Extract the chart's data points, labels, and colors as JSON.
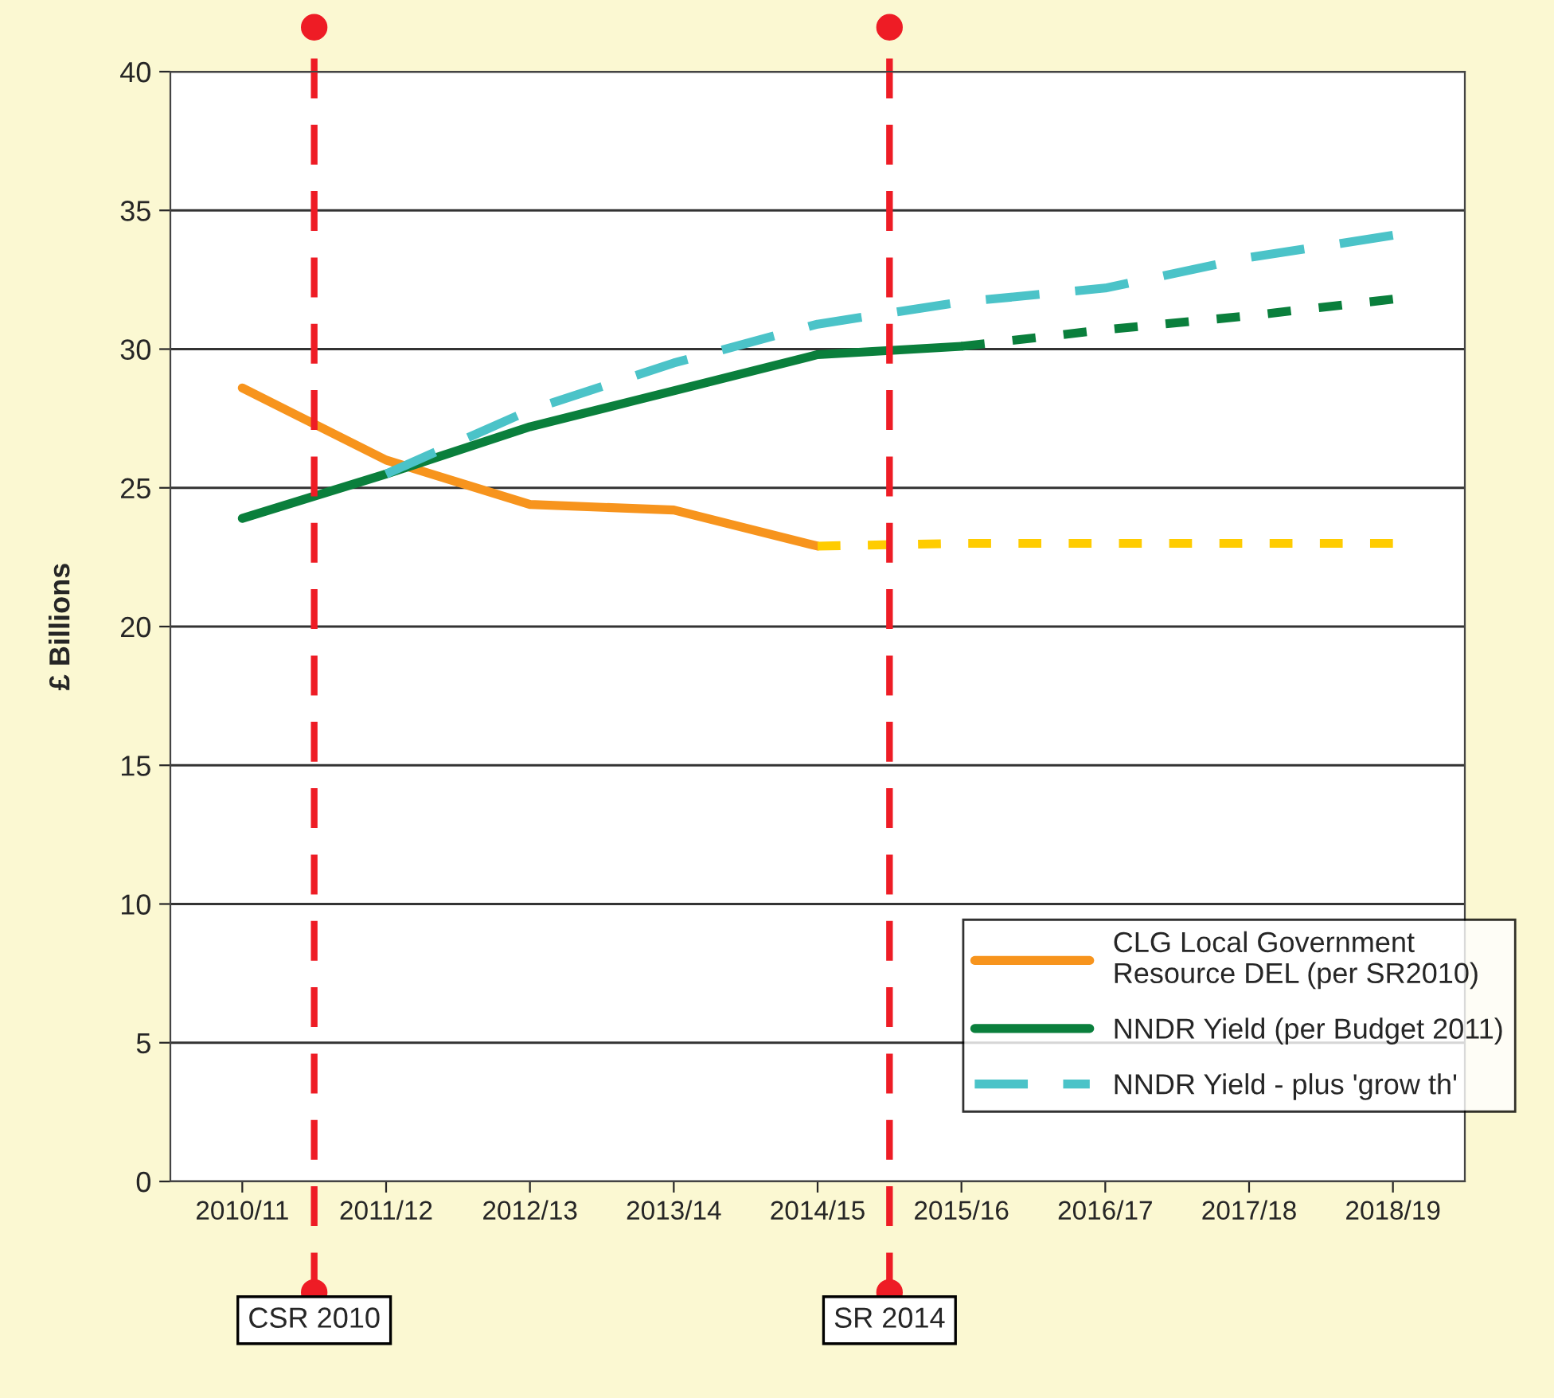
{
  "chart_data": {
    "type": "line",
    "ylabel": "£ Billions",
    "categories": [
      "2010/11",
      "2011/12",
      "2012/13",
      "2013/14",
      "2014/15",
      "2015/16",
      "2016/17",
      "2017/18",
      "2018/19"
    ],
    "series": [
      {
        "name": "CLG Local Government\nResource DEL (per SR2010)",
        "color": "#f7941d",
        "line_style": "solid",
        "values": [
          28.6,
          26.0,
          24.4,
          24.2,
          22.9,
          null,
          null,
          null,
          null
        ]
      },
      {
        "color": "#ffcc00",
        "line_style": "dotted",
        "values": [
          null,
          null,
          null,
          null,
          22.9,
          23.0,
          23.0,
          23.0,
          23.0
        ]
      },
      {
        "name": "NNDR Yield (per Budget 2011)",
        "color": "#0a7f3c",
        "line_style": "solid",
        "values": [
          23.9,
          25.5,
          27.2,
          28.5,
          29.8,
          30.1,
          null,
          null,
          null
        ]
      },
      {
        "color": "#0a7f3c",
        "line_style": "dotted",
        "values": [
          null,
          null,
          null,
          null,
          null,
          30.1,
          30.7,
          31.2,
          31.8
        ]
      },
      {
        "name": "NNDR Yield - plus 'grow th'",
        "color": "#4bc3c8",
        "line_style": "dashed",
        "values": [
          null,
          25.5,
          27.8,
          29.5,
          30.9,
          31.7,
          32.2,
          33.3,
          34.1
        ]
      }
    ],
    "ylim": [
      0,
      40
    ],
    "yticks": [
      0,
      5,
      10,
      15,
      20,
      25,
      30,
      35,
      40
    ],
    "grid": "y",
    "legend": "bottom right",
    "annotations": [
      "CSR 2010",
      "SR 2014"
    ]
  }
}
